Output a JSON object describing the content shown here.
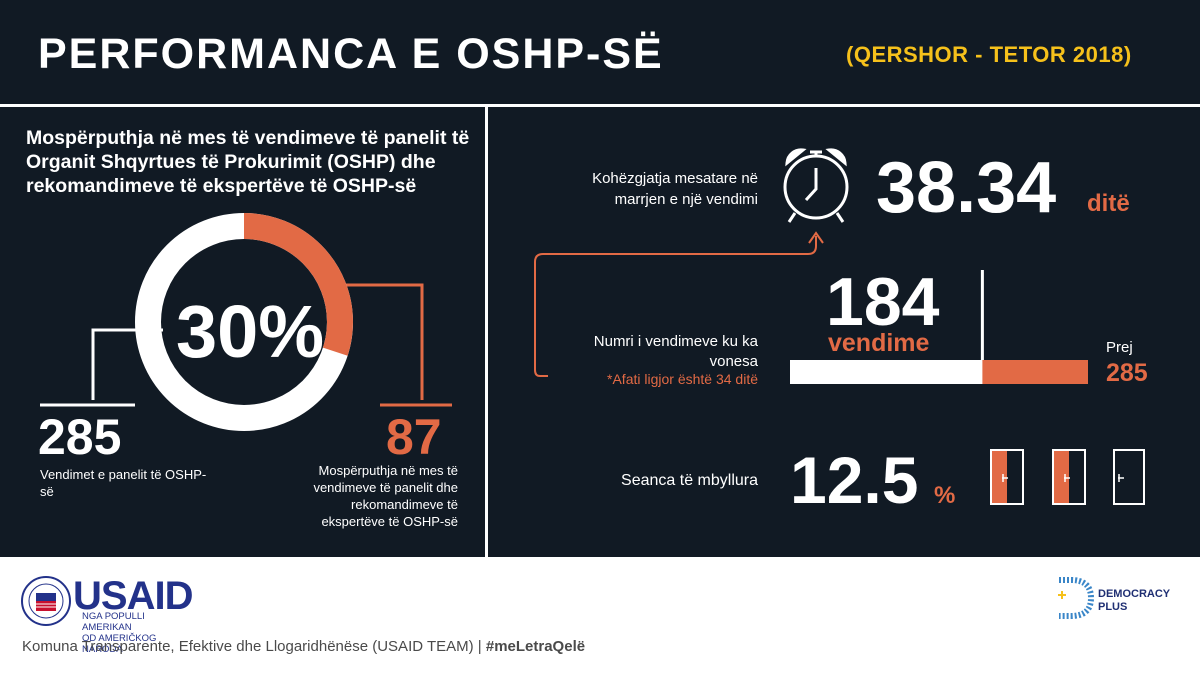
{
  "header": {
    "title": "PERFORMANCA E OSHP-SË",
    "date_range": "(QERSHOR - TETOR 2018)"
  },
  "left": {
    "heading": "Mospërputhja në mes të vendimeve të panelit të Organit Shqyrtues të Prokurimit (OSHP) dhe rekomandimeve të ekspertëve të OSHP-së",
    "percent_text": "30%",
    "percent_value": 30,
    "total_number": "285",
    "total_caption": "Vendimet e panelit të OSHP-së",
    "mismatch_number": "87",
    "mismatch_caption": "Mospërputhja në mes të vendimeve të panelit dhe rekomandimeve të ekspertëve të OSHP-së"
  },
  "right": {
    "duration_label": "Kohëzgjatja mesatare në marrjen e një vendimi",
    "duration_value": "38.34",
    "duration_unit": "ditë",
    "delayed_number": "184",
    "delayed_unit": "vendime",
    "delayed_label": "Numri i vendimeve ku ka vonesa",
    "deadline_note": "*Afati ligjor është 34 ditë",
    "out_of_label": "Prej",
    "out_of_value": "285",
    "delayed_fraction": 0.6456,
    "closed_label": "Seanca të mbyllura",
    "closed_value": "12.5",
    "closed_unit": "%"
  },
  "colors": {
    "background": "#111a24",
    "accent": "#e26a45",
    "date_yellow": "#f6c11b",
    "usaid_blue": "#23328a"
  },
  "logos": {
    "usaid_name": "USAID",
    "usaid_tagline": "NGA POPULLI AMERIKAN\nOD AMERIČKOG NARODA",
    "democracy_plus": "DEMOCRACY\nPLUS"
  },
  "footer": {
    "text": "Komuna Transparente, Efektive dhe Llogaridhënëse (USAID TEAM) | ",
    "hashtag": "#meLetraQelë"
  }
}
